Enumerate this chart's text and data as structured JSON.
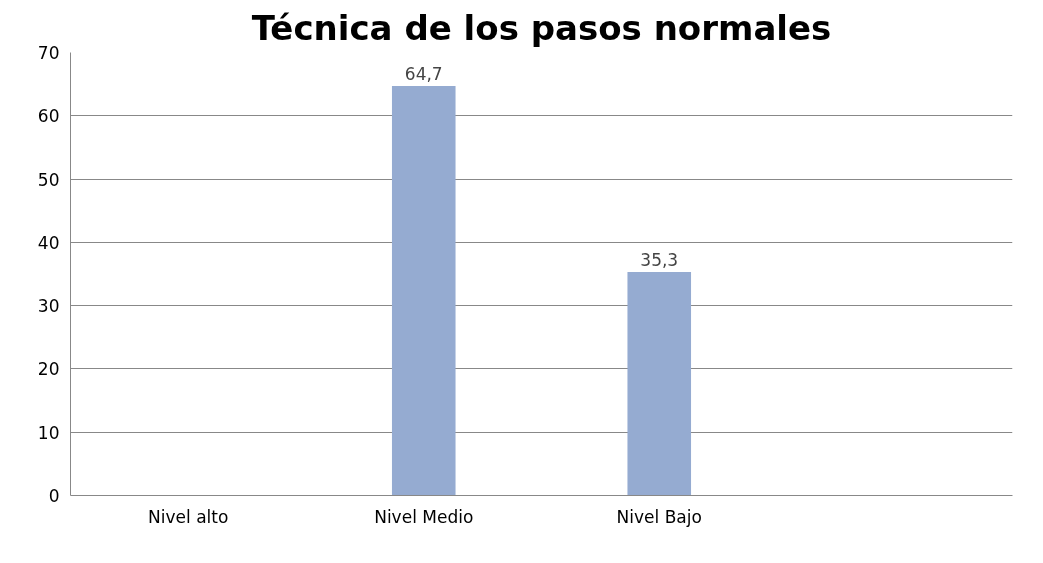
{
  "chart_data": {
    "type": "bar",
    "title": "Técnica de los pasos normales",
    "categories": [
      "Nivel alto",
      "Nivel Medio",
      "Nivel Bajo",
      null
    ],
    "values": [
      null,
      64.7,
      35.3,
      null
    ],
    "value_labels": [
      null,
      "64,7",
      "35,3",
      null
    ],
    "color": "#95abd1",
    "ylim": [
      0,
      70
    ],
    "yticks": [
      0,
      10,
      20,
      30,
      40,
      50,
      60,
      70
    ],
    "grid": "y"
  }
}
